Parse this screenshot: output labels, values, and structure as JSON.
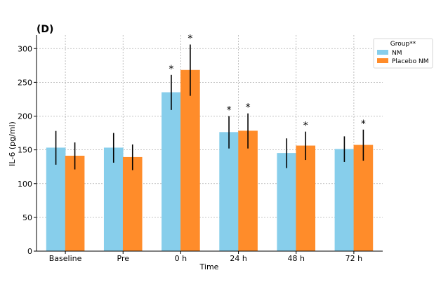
{
  "chart_data": {
    "type": "bar",
    "panel_label": "(D)",
    "xlabel": "Time",
    "ylabel": "IL-6 (pg/ml)",
    "ylim": [
      0,
      320
    ],
    "yticks": [
      0,
      50,
      100,
      150,
      200,
      250,
      300
    ],
    "grid": true,
    "legend": {
      "title": "Group**",
      "position": "top-right"
    },
    "categories": [
      "Baseline",
      "Pre",
      "0 h",
      "24 h",
      "48 h",
      "72 h"
    ],
    "series": [
      {
        "name": "NM",
        "color": "#87CEEB",
        "values": [
          153,
          153,
          235,
          176,
          145,
          151
        ],
        "error": [
          25,
          22,
          26,
          24,
          22,
          19
        ],
        "significant": [
          false,
          false,
          true,
          true,
          false,
          false
        ]
      },
      {
        "name": "Placebo NM",
        "color": "#FF8C2A",
        "values": [
          141,
          139,
          268,
          178,
          156,
          157
        ],
        "error": [
          20,
          19,
          38,
          26,
          21,
          23
        ],
        "significant": [
          false,
          false,
          true,
          true,
          true,
          true
        ]
      }
    ],
    "significance_marker": "*"
  }
}
